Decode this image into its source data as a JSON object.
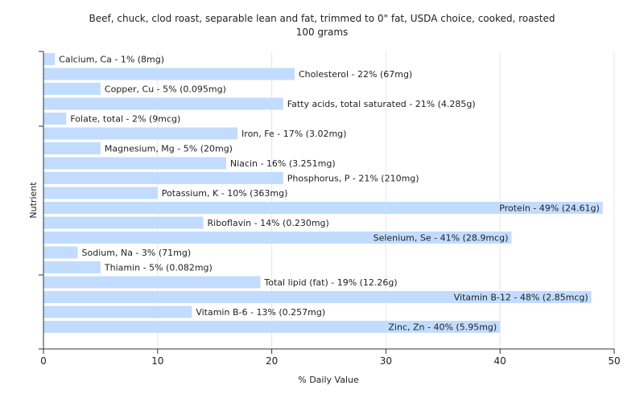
{
  "chart_data": {
    "type": "bar",
    "orientation": "horizontal",
    "title": "Beef, chuck, clod roast, separable lean and fat, trimmed to 0\" fat, USDA choice, cooked, roasted",
    "subtitle": "100 grams",
    "xlabel": "% Daily Value",
    "ylabel": "Nutrient",
    "xlim": [
      0,
      50
    ],
    "xticks": [
      0,
      10,
      20,
      30,
      40,
      50
    ],
    "grid": true,
    "bar_color": "#c2dcff",
    "categories": [
      "Calcium, Ca",
      "Cholesterol",
      "Copper, Cu",
      "Fatty acids, total saturated",
      "Folate, total",
      "Iron, Fe",
      "Magnesium, Mg",
      "Niacin",
      "Phosphorus, P",
      "Potassium, K",
      "Protein",
      "Riboflavin",
      "Selenium, Se",
      "Sodium, Na",
      "Thiamin",
      "Total lipid (fat)",
      "Vitamin B-12",
      "Vitamin B-6",
      "Zinc, Zn"
    ],
    "values": [
      1,
      22,
      5,
      21,
      2,
      17,
      5,
      16,
      21,
      10,
      49,
      14,
      41,
      3,
      5,
      19,
      48,
      13,
      40
    ],
    "labels": [
      "Calcium, Ca - 1% (8mg)",
      "Cholesterol - 22% (67mg)",
      "Copper, Cu - 5% (0.095mg)",
      "Fatty acids, total saturated - 21% (4.285g)",
      "Folate, total - 2% (9mcg)",
      "Iron, Fe - 17% (3.02mg)",
      "Magnesium, Mg - 5% (20mg)",
      "Niacin - 16% (3.251mg)",
      "Phosphorus, P - 21% (210mg)",
      "Potassium, K - 10% (363mg)",
      "Protein - 49% (24.61g)",
      "Riboflavin - 14% (0.230mg)",
      "Selenium, Se - 41% (28.9mcg)",
      "Sodium, Na - 3% (71mg)",
      "Thiamin - 5% (0.082mg)",
      "Total lipid (fat) - 19% (12.26g)",
      "Vitamin B-12 - 48% (2.85mcg)",
      "Vitamin B-6 - 13% (0.257mg)",
      "Zinc, Zn - 40% (5.95mg)"
    ]
  }
}
